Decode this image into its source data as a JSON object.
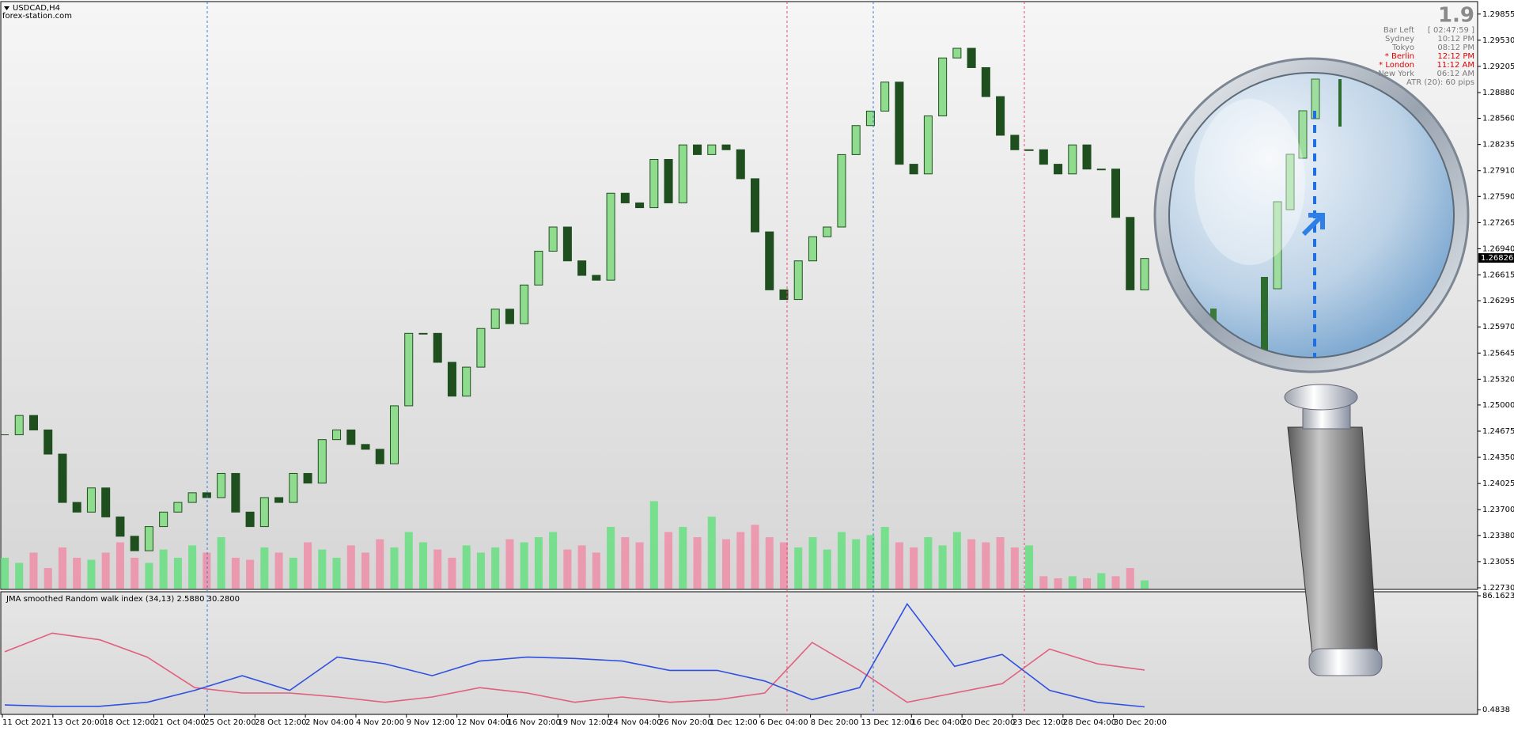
{
  "header": {
    "symbol": "USDCAD,H4",
    "site": "forex-station.com"
  },
  "info": {
    "countdown": "1.9",
    "bar_left_label": "Bar Left",
    "bar_left": "[ 02:47:59 ]",
    "clocks": [
      {
        "city": "Sydney",
        "time": "10:12 PM",
        "highlight": false
      },
      {
        "city": "Tokyo",
        "time": "08:12 PM",
        "highlight": false
      },
      {
        "city": "* Berlin",
        "time": "12:12 PM",
        "highlight": true
      },
      {
        "city": "* London",
        "time": "11:12 AM",
        "highlight": true
      },
      {
        "city": "New York",
        "time": "06:12 AM",
        "highlight": false
      }
    ],
    "atr": "ATR (20): 60 pips"
  },
  "chart_data": [
    {
      "type": "candlestick",
      "up_color": "#8fdc8f",
      "down_color": "#1f4f1f",
      "volume_up_color": "#5fe07a",
      "volume_down_color": "#f08aa5",
      "closes": [
        1.2463,
        1.2487,
        1.2469,
        1.2439,
        1.2379,
        1.2367,
        1.2397,
        1.2361,
        1.2337,
        1.2319,
        1.2349,
        1.2367,
        1.2379,
        1.2391,
        1.2385,
        1.2415,
        1.2367,
        1.2349,
        1.2385,
        1.2379,
        1.2415,
        1.2403,
        1.2457,
        1.2469,
        1.2451,
        1.2445,
        1.2427,
        1.2499,
        1.2589,
        1.2589,
        1.2553,
        1.2511,
        1.2547,
        1.2595,
        1.2619,
        1.2601,
        1.2649,
        1.2691,
        1.2721,
        1.2679,
        1.2661,
        1.2655,
        1.2763,
        1.2751,
        1.2745,
        1.2805,
        1.2751,
        1.2823,
        1.2811,
        1.2823,
        1.2817,
        1.2781,
        1.2715,
        1.2643,
        1.2631,
        1.2679,
        1.2709,
        1.2721,
        1.2811,
        1.2847,
        1.2865,
        1.2901,
        1.2799,
        1.2787,
        1.2859,
        1.2931,
        1.2943,
        1.2919,
        1.2883,
        1.2835,
        1.2817,
        1.2817,
        1.2799,
        1.2787,
        1.2823,
        1.2793,
        1.2793,
        1.2733,
        1.2643,
        1.2682
      ],
      "volumes": [
        30,
        25,
        35,
        20,
        40,
        30,
        28,
        35,
        45,
        30,
        25,
        38,
        30,
        42,
        35,
        50,
        30,
        28,
        40,
        35,
        30,
        45,
        38,
        30,
        42,
        35,
        48,
        40,
        55,
        45,
        38,
        30,
        42,
        35,
        40,
        48,
        45,
        50,
        55,
        38,
        42,
        35,
        60,
        50,
        45,
        85,
        55,
        60,
        50,
        70,
        48,
        55,
        62,
        50,
        45,
        40,
        50,
        38,
        55,
        48,
        52,
        60,
        45,
        40,
        50,
        42,
        55,
        48,
        45,
        50,
        40,
        42,
        12,
        10,
        12,
        10,
        15,
        12,
        20,
        8
      ],
      "ylim": [
        1.2271,
        1.3001
      ],
      "yticks": [
        {
          "value": 1.29855,
          "label": "1.29855"
        },
        {
          "value": 1.2953,
          "label": "1.29530"
        },
        {
          "value": 1.29205,
          "label": "1.29205"
        },
        {
          "value": 1.2888,
          "label": "1.28880"
        },
        {
          "value": 1.2856,
          "label": "1.28560"
        },
        {
          "value": 1.28235,
          "label": "1.28235"
        },
        {
          "value": 1.2791,
          "label": "1.27910"
        },
        {
          "value": 1.2759,
          "label": "1.27590"
        },
        {
          "value": 1.27265,
          "label": "1.27265"
        },
        {
          "value": 1.2694,
          "label": "1.26940"
        },
        {
          "value": 1.26615,
          "label": "1.26615"
        },
        {
          "value": 1.26295,
          "label": "1.26295"
        },
        {
          "value": 1.2597,
          "label": "1.25970"
        },
        {
          "value": 1.25645,
          "label": "1.25645"
        },
        {
          "value": 1.2532,
          "label": "1.25320"
        },
        {
          "value": 1.25,
          "label": "1.25000"
        },
        {
          "value": 1.24675,
          "label": "1.24675"
        },
        {
          "value": 1.2435,
          "label": "1.24350"
        },
        {
          "value": 1.24025,
          "label": "1.24025"
        },
        {
          "value": 1.237,
          "label": "1.23700"
        },
        {
          "value": 1.2338,
          "label": "1.23380"
        },
        {
          "value": 1.23055,
          "label": "1.23055"
        },
        {
          "value": 1.2273,
          "label": "1.22730"
        }
      ],
      "current_price": 1.26826,
      "x_labels": [
        "11 Oct 2021",
        "13 Oct 20:00",
        "18 Oct 12:00",
        "21 Oct 04:00",
        "25 Oct 20:00",
        "28 Oct 12:00",
        "2 Nov 04:00",
        "4 Nov 20:00",
        "9 Nov 12:00",
        "12 Nov 04:00",
        "16 Nov 20:00",
        "19 Nov 12:00",
        "24 Nov 04:00",
        "26 Nov 20:00",
        "1 Dec 12:00",
        "6 Dec 04:00",
        "8 Dec 20:00",
        "13 Dec 12:00",
        "16 Dec 04:00",
        "20 Dec 20:00",
        "23 Dec 12:00",
        "28 Dec 04:00",
        "30 Dec 20:00"
      ]
    },
    {
      "type": "line",
      "title": "JMA smoothed Random walk index (34,13) 2.5880 30.2800",
      "ylim": [
        0.4838,
        86.1623
      ],
      "yticks": [
        86.1623,
        0.4838
      ],
      "series": [
        {
          "color": "#e0607e",
          "values": [
            44,
            58,
            53,
            40,
            17,
            13,
            13,
            10,
            6,
            10,
            17,
            13,
            6,
            10,
            6,
            8,
            13,
            51,
            30,
            6,
            13,
            20,
            46,
            35,
            30.28
          ]
        },
        {
          "color": "#3050e0",
          "values": [
            4,
            3,
            3,
            6,
            15,
            26,
            15,
            40,
            35,
            26,
            37,
            40,
            39,
            37,
            30,
            30,
            22,
            8,
            17,
            80,
            33,
            42,
            15,
            6,
            2.588
          ]
        }
      ]
    }
  ]
}
